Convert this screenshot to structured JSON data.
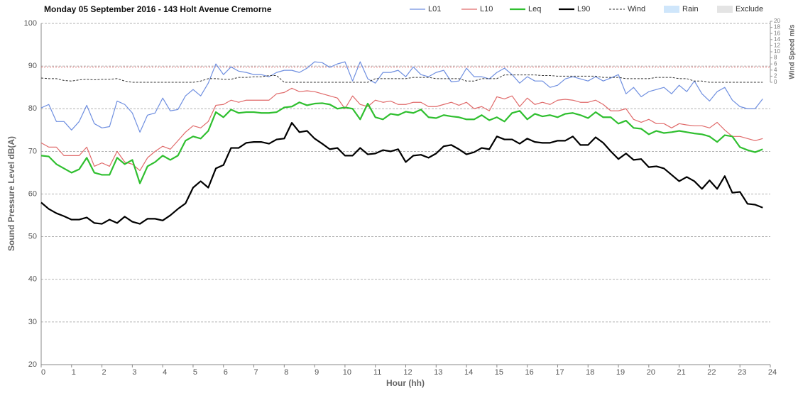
{
  "chart_data": {
    "type": "line",
    "title": "Monday 05 September 2016 - 143 Holt Avenue Cremorne",
    "x_label": "Hour (hh)",
    "y_label": "Sound Pressure Level dB(A)",
    "y2_label": "Wind Speed  m/s",
    "x": [
      0,
      0.25,
      0.5,
      0.75,
      1,
      1.25,
      1.5,
      1.75,
      2,
      2.25,
      2.5,
      2.75,
      3,
      3.25,
      3.5,
      3.75,
      4,
      4.25,
      4.5,
      4.75,
      5,
      5.25,
      5.5,
      5.75,
      6,
      6.25,
      6.5,
      6.75,
      7,
      7.25,
      7.5,
      7.75,
      8,
      8.25,
      8.5,
      8.75,
      9,
      9.25,
      9.5,
      9.75,
      10,
      10.25,
      10.5,
      10.75,
      11,
      11.25,
      11.5,
      11.75,
      12,
      12.25,
      12.5,
      12.75,
      13,
      13.25,
      13.5,
      13.75,
      14,
      14.25,
      14.5,
      14.75,
      15,
      15.25,
      15.5,
      15.75,
      16,
      16.25,
      16.5,
      16.75,
      17,
      17.25,
      17.5,
      17.75,
      18,
      18.25,
      18.5,
      18.75,
      19,
      19.25,
      19.5,
      19.75,
      20,
      20.25,
      20.5,
      20.75,
      21,
      21.25,
      21.5,
      21.75,
      22,
      22.25,
      22.5,
      22.75,
      23,
      23.25,
      23.5,
      23.75
    ],
    "xlim": [
      0,
      24
    ],
    "xticks": [
      0,
      1,
      2,
      3,
      4,
      5,
      6,
      7,
      8,
      9,
      10,
      11,
      12,
      13,
      14,
      15,
      16,
      17,
      18,
      19,
      20,
      21,
      22,
      23,
      24
    ],
    "ylim": [
      20,
      100
    ],
    "yticks": [
      20,
      30,
      40,
      50,
      60,
      70,
      80,
      90,
      100
    ],
    "y2lim": [
      0,
      20
    ],
    "y2ticks": [
      0,
      2,
      4,
      6,
      8,
      10,
      12,
      14,
      16,
      18,
      20
    ],
    "grid": true,
    "series": [
      {
        "name": "L01",
        "color": "#6f8fe0",
        "line_width": 1.2,
        "values": [
          80.2,
          81,
          77,
          77,
          75,
          77,
          80.8,
          76.5,
          75.5,
          75.8,
          81.8,
          81,
          79,
          74.5,
          78.5,
          79,
          82.5,
          79.5,
          79.8,
          83,
          84.5,
          83,
          86,
          90.5,
          88,
          89.8,
          88.8,
          88.5,
          88,
          88,
          87.5,
          88.5,
          89,
          89,
          88.5,
          89.5,
          91,
          90.8,
          89.7,
          90.5,
          91,
          86.5,
          91,
          87,
          86,
          88.5,
          88.5,
          89,
          87.5,
          89.8,
          88,
          87.5,
          88.5,
          89,
          86.3,
          86.5,
          89.5,
          87.5,
          87.5,
          87,
          88.5,
          89.5,
          88,
          86,
          87.5,
          86.5,
          86.5,
          85,
          85.5,
          87,
          87.5,
          87,
          86.5,
          87.5,
          86.5,
          87.2,
          88,
          83.5,
          85,
          82.8,
          84,
          84.5,
          85,
          83.5,
          85.5,
          84,
          86.5,
          83.5,
          81.8,
          84,
          85,
          82,
          80.5,
          80,
          80,
          82.3
        ]
      },
      {
        "name": "L10",
        "color": "#e06a6a",
        "line_width": 1.2,
        "values": [
          72,
          71,
          71,
          69,
          69,
          69,
          71,
          66.5,
          67.3,
          66.5,
          70,
          67.5,
          67,
          65.5,
          68.5,
          70,
          71.2,
          70.5,
          72.5,
          74.5,
          76,
          75.5,
          77,
          80.8,
          81,
          82,
          81.5,
          82,
          82,
          82,
          82,
          83.5,
          83.8,
          84.8,
          84,
          84.2,
          84,
          83.5,
          83,
          82.5,
          80,
          83,
          81,
          80.5,
          82,
          81.5,
          81.8,
          81,
          81,
          81.5,
          81.5,
          80.5,
          80.5,
          81,
          81.5,
          80.8,
          81.5,
          80,
          80.5,
          79.5,
          82.8,
          82.3,
          83,
          80.5,
          82.5,
          81,
          81.5,
          81,
          82,
          82.2,
          82,
          81.5,
          81.5,
          82,
          81,
          79.5,
          79.5,
          80,
          77.5,
          76.8,
          77.5,
          76.5,
          76.5,
          75.5,
          76.5,
          76.2,
          76,
          76,
          75.5,
          76.8,
          75,
          73.5,
          73.5,
          73,
          72.5,
          73
        ]
      },
      {
        "name": "Leq",
        "color": "#2fbf2f",
        "line_width": 2.2,
        "values": [
          69,
          68.8,
          67,
          66,
          65,
          65.8,
          68.5,
          65,
          64.5,
          64.5,
          68.5,
          67,
          68,
          62.5,
          66.5,
          67.5,
          69,
          68,
          69,
          72.5,
          73.5,
          73,
          74.8,
          79.2,
          78,
          79.8,
          79,
          79.2,
          79.2,
          79,
          79,
          79.2,
          80.3,
          80.5,
          81.5,
          80.8,
          81.2,
          81.3,
          81,
          80,
          80.3,
          80,
          77.5,
          81.2,
          78,
          77.5,
          78.8,
          78.5,
          79.3,
          79,
          79.8,
          78,
          77.8,
          78.5,
          78.2,
          78,
          77.5,
          77.5,
          78.5,
          77.3,
          78,
          77,
          79,
          79.5,
          77.5,
          78.8,
          78.2,
          78.5,
          78,
          78.8,
          79,
          78.5,
          77.8,
          79.2,
          78,
          78,
          76.5,
          77.2,
          75.5,
          75.3,
          74,
          74.8,
          74.3,
          74.5,
          74.8,
          74.5,
          74.2,
          74,
          73.5,
          72.2,
          73.8,
          73.5,
          71,
          70.3,
          69.8,
          70.5
        ]
      },
      {
        "name": "L90",
        "color": "#000000",
        "line_width": 2.2,
        "values": [
          58,
          56.5,
          55.5,
          54.8,
          54,
          54,
          54.5,
          53.2,
          53,
          54,
          53.2,
          54.7,
          53.5,
          53,
          54.2,
          54.2,
          53.8,
          55,
          56.5,
          57.8,
          61.5,
          63,
          61.5,
          66,
          66.8,
          70.8,
          70.8,
          72,
          72.2,
          72.2,
          71.8,
          72.8,
          73,
          76.7,
          74.5,
          74.8,
          73,
          71.8,
          70.5,
          70.8,
          69,
          69,
          70.8,
          69.3,
          69.5,
          70.3,
          70,
          70.5,
          67.5,
          69,
          69.2,
          68.5,
          69.5,
          71.2,
          71.5,
          70.5,
          69.3,
          69.8,
          70.8,
          70.5,
          73.5,
          72.8,
          72.8,
          71.8,
          73,
          72.2,
          72,
          72,
          72.5,
          72.5,
          73.5,
          71.5,
          71.5,
          73.3,
          72,
          70,
          68.2,
          69.5,
          68,
          68.2,
          66.3,
          66.5,
          66,
          64.5,
          63,
          64,
          63,
          61.2,
          63.2,
          61.2,
          64.2,
          60.3,
          60.5,
          57.7,
          57.5,
          56.8
        ]
      },
      {
        "name": "Wind",
        "color": "#333333",
        "line_width": 1,
        "dashed": true,
        "axis": "y2",
        "values": [
          1.4,
          1.2,
          1.2,
          0.6,
          0.4,
          0.8,
          1,
          0.8,
          1,
          1,
          1.2,
          0.4,
          0,
          0,
          0,
          0,
          0,
          0,
          0,
          0,
          0,
          0.4,
          1.2,
          1.2,
          1,
          1,
          1.6,
          1.6,
          1.8,
          1.8,
          2.2,
          2.2,
          0,
          0,
          0,
          0,
          0,
          0,
          0,
          0,
          0,
          0,
          0,
          0,
          1.2,
          1.2,
          1.2,
          1.2,
          1.2,
          1.6,
          1.6,
          1.6,
          1.2,
          1.2,
          1.2,
          1.2,
          0.4,
          0.4,
          1.2,
          1.2,
          1.2,
          2.4,
          2.4,
          2.4,
          2.4,
          2.4,
          2.2,
          2.2,
          2,
          2,
          2,
          2,
          2,
          2,
          1.6,
          1.6,
          1.6,
          1.2,
          1.2,
          1.2,
          1.2,
          1.6,
          1.6,
          1.6,
          1.2,
          1.2,
          0.4,
          0.4,
          0,
          0,
          0,
          0,
          0,
          0,
          0,
          0
        ]
      }
    ],
    "legend_patches": [
      {
        "name": "Rain",
        "color": "#cfe6fb"
      },
      {
        "name": "Exclude",
        "color": "#e4e4e4"
      }
    ],
    "wind_limit": 5,
    "wind_limit_color": "#e06a6a"
  }
}
